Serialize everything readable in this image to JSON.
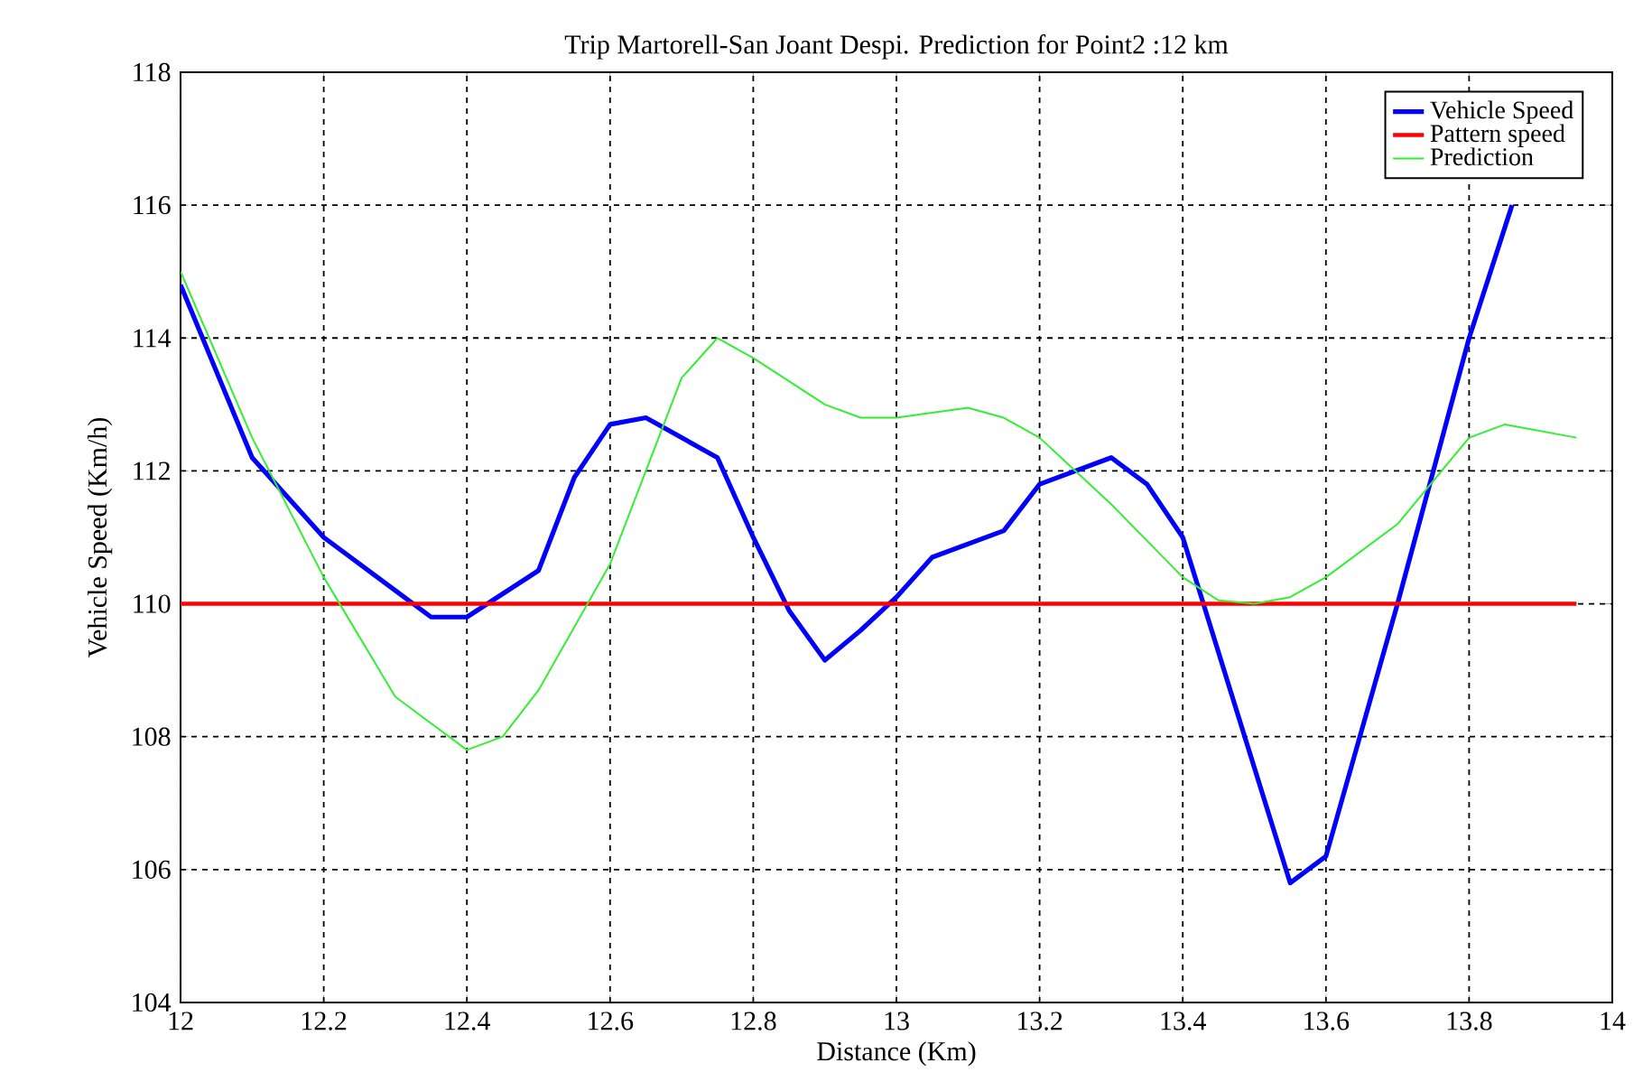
{
  "chart_data": {
    "type": "line",
    "title": "Trip Martorell-San Joant Despi. Prediction for Point2 :12 km",
    "xlabel": "Distance (Km)",
    "ylabel": "Vehicle Speed (Km/h)",
    "xlim": [
      12,
      14
    ],
    "ylim": [
      104,
      118
    ],
    "xticks": [
      12,
      12.2,
      12.4,
      12.6,
      12.8,
      13,
      13.2,
      13.4,
      13.6,
      13.8,
      14
    ],
    "yticks": [
      104,
      106,
      108,
      110,
      112,
      114,
      116,
      118
    ],
    "grid": true,
    "legend": "top right",
    "line_style": "solid",
    "series": [
      {
        "name": "Vehicle Speed",
        "color": "#0000ff",
        "x": [
          12,
          12.1,
          12.2,
          12.3,
          12.35,
          12.4,
          12.5,
          12.55,
          12.6,
          12.65,
          12.75,
          12.8,
          12.85,
          12.9,
          12.95,
          13,
          13.05,
          13.15,
          13.2,
          13.3,
          13.35,
          13.4,
          13.55,
          13.6,
          13.7,
          13.8,
          13.86
        ],
        "values": [
          114.8,
          112.2,
          111.0,
          110.2,
          109.8,
          109.8,
          110.5,
          111.9,
          112.7,
          112.8,
          112.2,
          111.0,
          109.9,
          109.15,
          109.6,
          110.1,
          110.7,
          111.1,
          111.8,
          112.2,
          111.8,
          111.0,
          105.8,
          106.2,
          110.0,
          114.0,
          116.0
        ]
      },
      {
        "name": "Pattern speed",
        "color": "#ff0000",
        "x": [
          12,
          13.95
        ],
        "values": [
          110,
          110
        ]
      },
      {
        "name": "Prediction",
        "color": "#33ee33",
        "x": [
          12,
          12.1,
          12.2,
          12.3,
          12.4,
          12.45,
          12.5,
          12.6,
          12.7,
          12.75,
          12.8,
          12.9,
          12.95,
          13,
          13.1,
          13.15,
          13.2,
          13.3,
          13.4,
          13.45,
          13.5,
          13.55,
          13.6,
          13.7,
          13.8,
          13.85,
          13.95
        ],
        "values": [
          115.0,
          112.5,
          110.4,
          108.6,
          107.8,
          108.0,
          108.7,
          110.6,
          113.4,
          114.0,
          113.7,
          113.0,
          112.8,
          112.8,
          112.95,
          112.8,
          112.5,
          111.5,
          110.4,
          110.05,
          110.0,
          110.1,
          110.4,
          111.2,
          112.5,
          112.7,
          112.5
        ]
      }
    ]
  }
}
